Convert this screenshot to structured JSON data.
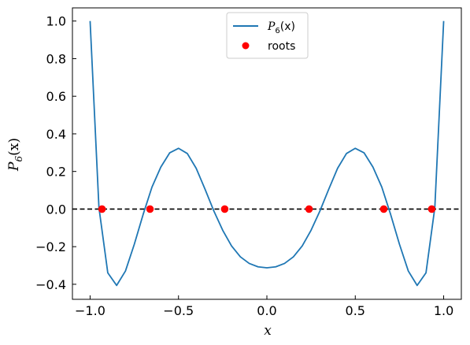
{
  "chart_data": {
    "type": "line",
    "title": "",
    "xlabel": "x",
    "ylabel": "P6(x)",
    "xlim": [
      -1.1,
      1.1
    ],
    "ylim": [
      -0.48,
      1.07
    ],
    "xticks": [
      -1.0,
      -0.5,
      0.0,
      0.5,
      1.0
    ],
    "xtick_labels": [
      "−1.0",
      "−0.5",
      "0.0",
      "0.5",
      "1.0"
    ],
    "yticks": [
      -0.4,
      -0.2,
      0.0,
      0.2,
      0.4,
      0.6,
      0.8,
      1.0
    ],
    "ytick_labels": [
      "−0.4",
      "−0.2",
      "0.0",
      "0.2",
      "0.4",
      "0.6",
      "0.8",
      "1.0"
    ],
    "grid": false,
    "legend_position": "top-center",
    "series": [
      {
        "name": "P6(x)",
        "kind": "line",
        "color": "#1f77b4",
        "x": [
          -1.0,
          -0.95,
          -0.9,
          -0.85,
          -0.8,
          -0.75,
          -0.7,
          -0.65,
          -0.6,
          -0.55,
          -0.5,
          -0.45,
          -0.4,
          -0.35,
          -0.3,
          -0.25,
          -0.2,
          -0.15,
          -0.1,
          -0.05,
          0.0,
          0.05,
          0.1,
          0.15,
          0.2,
          0.25,
          0.3,
          0.35,
          0.4,
          0.45,
          0.5,
          0.55,
          0.6,
          0.65,
          0.7,
          0.75,
          0.8,
          0.85,
          0.9,
          0.95,
          1.0
        ],
        "y": [
          1.0,
          0.0076,
          -0.3391,
          -0.4062,
          -0.3294,
          -0.1874,
          -0.0284,
          0.1171,
          0.2234,
          0.2988,
          0.3232,
          0.2952,
          0.2171,
          0.1058,
          -0.0102,
          -0.1125,
          -0.196,
          -0.2541,
          -0.2892,
          -0.3073,
          -0.3125,
          -0.3073,
          -0.2892,
          -0.2541,
          -0.196,
          -0.1125,
          -0.0102,
          0.1058,
          0.2171,
          0.2952,
          0.3232,
          0.2988,
          0.2234,
          0.1171,
          -0.0284,
          -0.1874,
          -0.3294,
          -0.4062,
          -0.3391,
          0.0076,
          1.0
        ]
      },
      {
        "name": "roots",
        "kind": "scatter",
        "color": "#ff0000",
        "x": [
          -0.9325,
          -0.6612,
          -0.2386,
          0.2386,
          0.6612,
          0.9325
        ],
        "y": [
          0,
          0,
          0,
          0,
          0,
          0
        ]
      }
    ],
    "reference_line": {
      "y": 0.0,
      "style": "dashed",
      "color": "#000000"
    }
  },
  "legend": {
    "items": [
      {
        "label_base": "P",
        "label_sub": "6",
        "label_tail": "(x)"
      },
      {
        "label": "roots"
      }
    ]
  },
  "axes": {
    "xlabel": "x",
    "ylabel_base": "P",
    "ylabel_sub": "6",
    "ylabel_tail": "(x)"
  }
}
